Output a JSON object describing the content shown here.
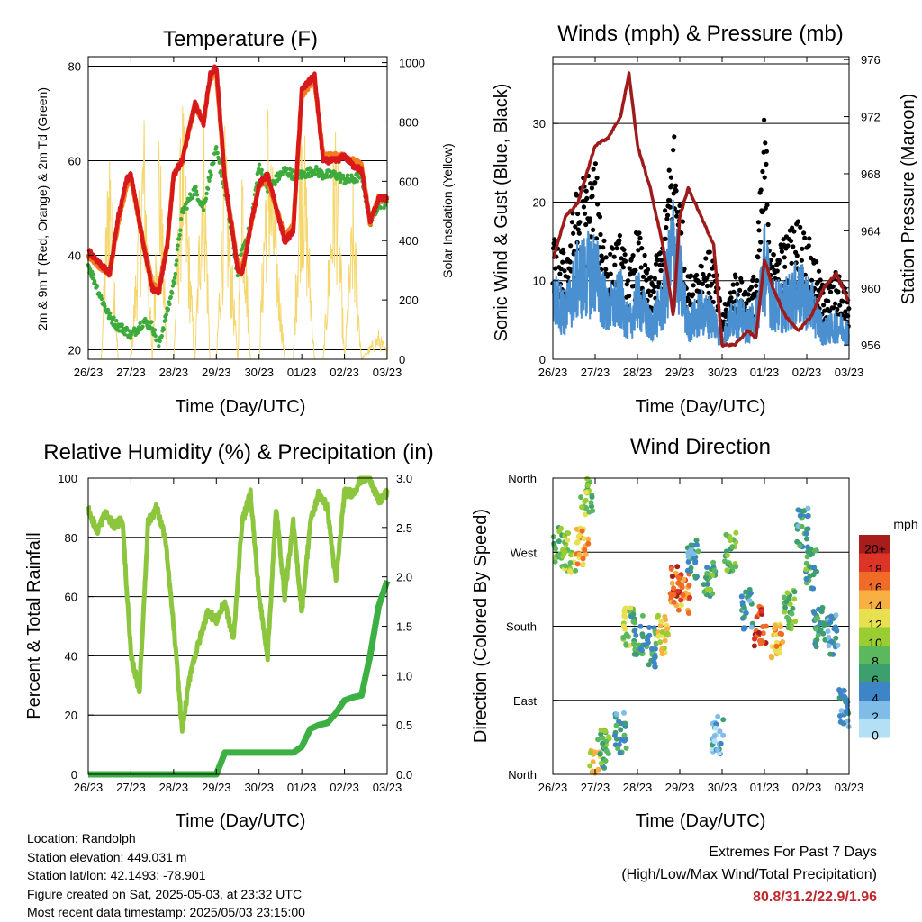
{
  "x_ticks": [
    "26/23",
    "27/23",
    "28/23",
    "29/23",
    "30/23",
    "01/23",
    "02/23",
    "03/23"
  ],
  "x_label": "Time (Day/UTC)",
  "panels": {
    "temperature": {
      "title": "Temperature (F)",
      "ylabel_left": "2m & 9m T (Red, Orange) & 2m Td (Green)",
      "ylabel_right": "Solar Insolation (Yellow)",
      "left_ticks": [
        "20",
        "40",
        "60",
        "80"
      ],
      "right_ticks": [
        "0",
        "200",
        "400",
        "600",
        "800",
        "1000"
      ]
    },
    "wind": {
      "title": "Winds (mph) & Pressure (mb)",
      "ylabel_left": "Sonic Wind & Gust (Blue, Black)",
      "ylabel_right": "Station Pressure (Maroon)",
      "left_ticks": [
        "0",
        "10",
        "20",
        "30"
      ],
      "right_ticks": [
        "956",
        "960",
        "964",
        "968",
        "972",
        "976"
      ]
    },
    "humidity": {
      "title": "Relative Humidity (%) & Precipitation (in)",
      "ylabel_left": "Percent & Total Rainfall",
      "left_ticks": [
        "0",
        "20",
        "40",
        "60",
        "80",
        "100"
      ],
      "right_ticks": [
        "0.0",
        "0.5",
        "1.0",
        "1.5",
        "2.0",
        "2.5",
        "3.0"
      ]
    },
    "direction": {
      "title": "Wind Direction",
      "ylabel_left": "Direction (Colored By Speed)",
      "left_ticks": [
        "North",
        "East",
        "South",
        "West",
        "North"
      ],
      "legend_title": "mph",
      "legend_labels": [
        "20+",
        "18",
        "16",
        "14",
        "12",
        "10",
        "8",
        "6",
        "4",
        "2",
        "0"
      ]
    }
  },
  "colors": {
    "temp_2m": "#d7191c",
    "temp_9m": "#f47b20",
    "dewpoint": "#3cab3c",
    "solar": "#f5d76e",
    "wind": "#4a90d0",
    "gust": "#000000",
    "pressure": "#9e1b1b",
    "rh": "#8cc63f",
    "precip": "#3cb043",
    "speed_scale": [
      "#b3e0f5",
      "#7fbde8",
      "#3d85c6",
      "#3d9e6e",
      "#5cb85c",
      "#9acd32",
      "#e8e050",
      "#f7b041",
      "#f06a28",
      "#dd3428",
      "#a81c1c"
    ]
  },
  "info": {
    "location": "Location: Randolph",
    "elevation": "Station elevation: 449.031 m",
    "latlon": "Station lat/lon: 42.1493; -78.901",
    "created": "Figure created on Sat, 2025-05-03, at 23:32 UTC",
    "recent": "Most recent data timestamp: 2025/05/03 23:15:00"
  },
  "extremes": {
    "heading": "Extremes For Past 7 Days",
    "subheading": "(High/Low/Max Wind/Total Precipitation)",
    "values": "80.8/31.2/22.9/1.96"
  },
  "chart_data": [
    {
      "type": "line",
      "title": "Temperature (F)",
      "xlabel": "Time (Day/UTC)",
      "ylabel": "2m & 9m T (Red, Orange) & 2m Td (Green)",
      "xlim": [
        0,
        7
      ],
      "ylim": [
        18,
        82
      ],
      "y2lim": [
        0,
        1020
      ],
      "x": [
        0,
        0.3,
        0.5,
        0.7,
        0.9,
        1.0,
        1.3,
        1.5,
        1.65,
        1.85,
        2.0,
        2.2,
        2.5,
        2.7,
        2.85,
        3.0,
        3.2,
        3.5,
        3.6,
        3.8,
        4.0,
        4.2,
        4.6,
        4.8,
        5.0,
        5.3,
        5.5,
        5.8,
        6.0,
        6.2,
        6.4,
        6.6,
        6.8,
        7.0
      ],
      "series": [
        {
          "name": "2m T",
          "axis": "left",
          "values": [
            41,
            38,
            36,
            48,
            56,
            57,
            42,
            33,
            32,
            42,
            57,
            60,
            72,
            68,
            78,
            80,
            56,
            37,
            36,
            46,
            55,
            57,
            43,
            45,
            75,
            78,
            60,
            60,
            61,
            59,
            58,
            47,
            52,
            52
          ]
        },
        {
          "name": "9m T",
          "axis": "left",
          "values": [
            40,
            37.5,
            36,
            47,
            55,
            56.5,
            42,
            34,
            33,
            42,
            57,
            60,
            72,
            68,
            77,
            79,
            56,
            38,
            37,
            46,
            55,
            56,
            44,
            46,
            74,
            77,
            61,
            61,
            61,
            60,
            59,
            47,
            52,
            52
          ]
        },
        {
          "name": "2m Td",
          "axis": "left",
          "values": [
            38,
            31,
            27,
            25,
            24,
            23,
            26,
            25,
            21,
            28,
            34,
            49,
            54,
            50,
            57,
            62,
            54,
            36,
            41,
            46,
            59,
            54,
            58,
            57,
            57,
            58,
            57,
            57,
            56,
            56,
            57,
            47,
            51,
            51
          ]
        },
        {
          "name": "Solar Insolation",
          "axis": "right",
          "values": [
            0,
            0,
            850,
            0,
            0,
            0,
            900,
            0,
            920,
            0,
            0,
            950,
            0,
            1000,
            0,
            0,
            800,
            0,
            850,
            0,
            0,
            950,
            0,
            0,
            1000,
            0,
            0,
            900,
            0,
            600,
            0,
            50,
            100,
            30
          ]
        }
      ]
    },
    {
      "type": "scatter",
      "title": "Winds (mph) & Pressure (mb)",
      "xlabel": "Time (Day/UTC)",
      "ylabel": "Sonic Wind & Gust (Blue, Black)",
      "xlim": [
        0,
        7
      ],
      "ylim": [
        0,
        38.5
      ],
      "y2lim": [
        955,
        976.2
      ],
      "x": [
        0,
        0.3,
        0.6,
        1.0,
        1.3,
        1.6,
        1.8,
        2.0,
        2.3,
        2.6,
        2.85,
        3.0,
        3.2,
        3.5,
        3.8,
        4.0,
        4.3,
        4.6,
        4.8,
        5.0,
        5.2,
        5.5,
        5.8,
        6.1,
        6.4,
        6.7,
        7.0
      ],
      "series": [
        {
          "name": "Sonic Wind",
          "values": [
            9,
            7,
            12,
            13,
            7,
            9,
            5,
            9,
            5,
            8,
            17,
            12,
            5,
            7,
            6,
            3,
            7,
            5,
            6,
            14,
            8,
            8,
            10,
            8,
            4,
            5,
            4
          ]
        },
        {
          "name": "Gust",
          "values": [
            14,
            12,
            20,
            22,
            12,
            14,
            10,
            15,
            9,
            14,
            27,
            19,
            9,
            12,
            12,
            5,
            10,
            8,
            10,
            28,
            12,
            14,
            16,
            13,
            8,
            10,
            7
          ]
        },
        {
          "name": "Station Pressure",
          "values": [
            962,
            965,
            966,
            970,
            970.5,
            972,
            975,
            970,
            967,
            963,
            958,
            965,
            967,
            965,
            963,
            956,
            956,
            957,
            956.5,
            962,
            960,
            958,
            957,
            958,
            960,
            961,
            959
          ]
        }
      ]
    },
    {
      "type": "line",
      "title": "Relative Humidity (%) & Precipitation (in)",
      "xlabel": "Time (Day/UTC)",
      "ylabel": "Percent & Total Rainfall",
      "xlim": [
        0,
        7
      ],
      "ylim": [
        0,
        100
      ],
      "y2lim": [
        0,
        3
      ],
      "x": [
        0,
        0.2,
        0.4,
        0.6,
        0.8,
        1.0,
        1.2,
        1.4,
        1.6,
        1.8,
        2.0,
        2.2,
        2.4,
        2.6,
        2.8,
        3.0,
        3.2,
        3.4,
        3.6,
        3.8,
        4.0,
        4.2,
        4.4,
        4.6,
        4.8,
        5.0,
        5.2,
        5.4,
        5.6,
        5.8,
        6.0,
        6.2,
        6.4,
        6.6,
        6.8,
        7.0
      ],
      "series": [
        {
          "name": "Relative Humidity",
          "axis": "left",
          "values": [
            90,
            82,
            88,
            84,
            86,
            40,
            28,
            85,
            90,
            80,
            50,
            15,
            35,
            45,
            55,
            52,
            58,
            45,
            85,
            95,
            60,
            40,
            90,
            60,
            85,
            55,
            85,
            95,
            90,
            65,
            95,
            95,
            100,
            100,
            92,
            95
          ]
        },
        {
          "name": "Total Precipitation",
          "axis": "right",
          "values": [
            0,
            0,
            0,
            0,
            0,
            0,
            0,
            0,
            0,
            0,
            0,
            0,
            0,
            0,
            0,
            0,
            0.22,
            0.22,
            0.22,
            0.22,
            0.22,
            0.22,
            0.22,
            0.22,
            0.22,
            0.28,
            0.46,
            0.5,
            0.52,
            0.62,
            0.75,
            0.78,
            0.8,
            1.2,
            1.7,
            1.96
          ]
        }
      ]
    },
    {
      "type": "scatter",
      "title": "Wind Direction",
      "xlabel": "Time (Day/UTC)",
      "ylabel": "Direction (Colored By Speed)",
      "xlim": [
        0,
        7
      ],
      "ylim": [
        0,
        360
      ],
      "series": [
        {
          "name": "Direction",
          "x": [
            0.1,
            0.4,
            0.7,
            0.8,
            1.0,
            1.2,
            1.6,
            1.8,
            2.0,
            2.3,
            2.6,
            2.9,
            3.1,
            3.3,
            3.7,
            3.9,
            4.2,
            4.6,
            4.9,
            5.3,
            5.6,
            5.9,
            6.1,
            6.3,
            6.6,
            6.9
          ],
          "y": [
            275,
            270,
            275,
            340,
            5,
            30,
            50,
            180,
            170,
            155,
            170,
            230,
            220,
            260,
            240,
            50,
            270,
            200,
            180,
            165,
            200,
            300,
            250,
            180,
            170,
            80
          ],
          "speed": [
            8,
            10,
            14,
            9,
            12,
            7,
            5,
            10,
            6,
            6,
            12,
            17,
            15,
            5,
            7,
            3,
            8,
            4,
            18,
            14,
            8,
            5,
            7,
            6,
            4,
            4
          ]
        }
      ],
      "legend": {
        "title": "mph",
        "labels": [
          "20+",
          "18",
          "16",
          "14",
          "12",
          "10",
          "8",
          "6",
          "4",
          "2",
          "0"
        ]
      }
    }
  ]
}
